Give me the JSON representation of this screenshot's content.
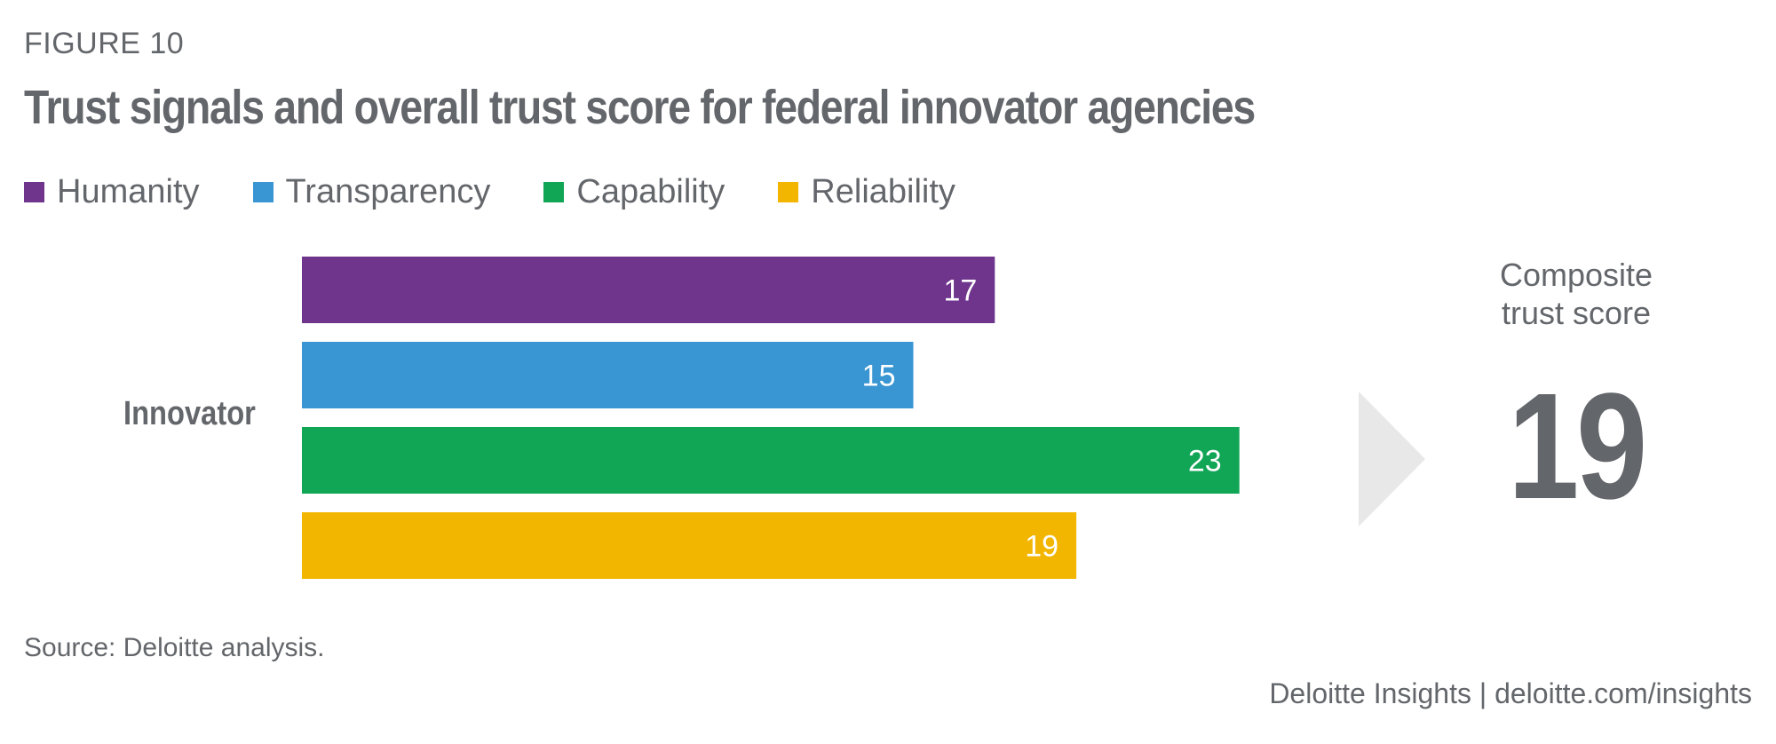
{
  "figure_label": "FIGURE 10",
  "title": "Trust signals and overall trust score for federal innovator agencies",
  "legend": [
    {
      "label": "Humanity",
      "color": "#6f358c"
    },
    {
      "label": "Transparency",
      "color": "#3996d3"
    },
    {
      "label": "Capability",
      "color": "#11a556"
    },
    {
      "label": "Reliability",
      "color": "#f2b600"
    }
  ],
  "composite": {
    "label_line1": "Composite",
    "label_line2": "trust score",
    "value": "19",
    "arrow_icon": "triangle-right"
  },
  "source": "Source: Deloitte analysis.",
  "footer": "Deloitte Insights | deloitte.com/insights",
  "chart_data": {
    "type": "bar",
    "orientation": "horizontal",
    "title": "Trust signals and overall trust score for federal innovator agencies",
    "categories": [
      "Innovator"
    ],
    "series": [
      {
        "name": "Humanity",
        "values": [
          17
        ],
        "color": "#6f358c"
      },
      {
        "name": "Transparency",
        "values": [
          15
        ],
        "color": "#3996d3"
      },
      {
        "name": "Capability",
        "values": [
          23
        ],
        "color": "#11a556"
      },
      {
        "name": "Reliability",
        "values": [
          19
        ],
        "color": "#f2b600"
      }
    ],
    "data_labels": [
      "17",
      "15",
      "23",
      "19"
    ],
    "composite_score": 19,
    "xlabel": "",
    "ylabel": "",
    "xlim": [
      0,
      23
    ],
    "grid": false,
    "legend_position": "top-left"
  }
}
